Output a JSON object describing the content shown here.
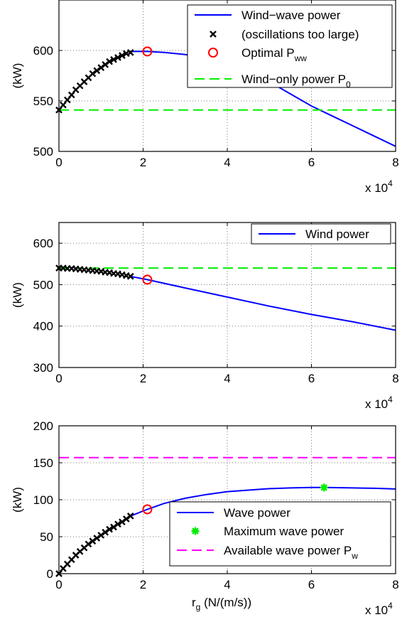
{
  "chart_data": [
    {
      "type": "line",
      "ylabel": "(kW)",
      "xlabel": "",
      "xlim": [
        0,
        80000
      ],
      "ylim": [
        500,
        650
      ],
      "x_ticks": [
        0,
        20000,
        40000,
        60000,
        80000
      ],
      "x_tick_labels": [
        "0",
        "2",
        "4",
        "6",
        "8"
      ],
      "y_ticks": [
        500,
        550,
        600
      ],
      "y_tick_labels": [
        "500",
        "550",
        "600"
      ],
      "x_multiplier": "x 10",
      "x_multiplier_exp": "4",
      "grid": true,
      "legend_position": "top-right",
      "series": [
        {
          "name": "Wind−wave power",
          "kind": "line",
          "color": "#0000ff",
          "x": [
            17000,
            21000,
            25000,
            30000,
            35000,
            40000,
            45000,
            50000,
            55000,
            60000,
            65000,
            70000,
            75000,
            80000
          ],
          "y": [
            599,
            599,
            598,
            596,
            592,
            586,
            578,
            569,
            557,
            545,
            535,
            525,
            515,
            505
          ]
        },
        {
          "name": "(oscillations too large)",
          "kind": "marker-x",
          "color": "#000000",
          "x": [
            0,
            1000,
            2000,
            3000,
            4000,
            5000,
            6000,
            7000,
            8000,
            9000,
            10000,
            11000,
            12000,
            13000,
            14000,
            15000,
            16000,
            17000
          ],
          "y": [
            541,
            546,
            551,
            556,
            561,
            565,
            569,
            573,
            577,
            580,
            583,
            586,
            589,
            591,
            593,
            595,
            597,
            598
          ]
        },
        {
          "name": "Optimal P",
          "name_sub": "ww",
          "kind": "marker-o",
          "color": "#ff0000",
          "x": [
            21000
          ],
          "y": [
            599
          ]
        },
        {
          "name": "Wind−only power P",
          "name_sub": "0",
          "kind": "dashed",
          "color": "#00ee00",
          "x": [
            0,
            80000
          ],
          "y": [
            541,
            541
          ]
        }
      ]
    },
    {
      "type": "line",
      "ylabel": "(kW)",
      "xlabel": "",
      "xlim": [
        0,
        80000
      ],
      "ylim": [
        300,
        650
      ],
      "x_ticks": [
        0,
        20000,
        40000,
        60000,
        80000
      ],
      "x_tick_labels": [
        "0",
        "2",
        "4",
        "6",
        "8"
      ],
      "y_ticks": [
        300,
        400,
        500,
        600
      ],
      "y_tick_labels": [
        "300",
        "400",
        "500",
        "600"
      ],
      "x_multiplier": "x 10",
      "x_multiplier_exp": "4",
      "grid": true,
      "legend_position": "top-right",
      "series": [
        {
          "name": "Wind power",
          "kind": "line",
          "color": "#0000ff",
          "x": [
            17000,
            21000,
            30000,
            40000,
            50000,
            60000,
            70000,
            80000
          ],
          "y": [
            520,
            512,
            492,
            470,
            448,
            428,
            410,
            390
          ]
        },
        {
          "name": "",
          "kind": "marker-x",
          "color": "#000000",
          "x": [
            0,
            1000,
            2000,
            3000,
            4000,
            5000,
            6000,
            7000,
            8000,
            9000,
            10000,
            11000,
            12000,
            13000,
            14000,
            15000,
            16000,
            17000
          ],
          "y": [
            540,
            540,
            539,
            539,
            538,
            537,
            536,
            535,
            534,
            533,
            532,
            530,
            529,
            527,
            526,
            524,
            522,
            520
          ]
        },
        {
          "name": "",
          "kind": "marker-o",
          "color": "#ff0000",
          "x": [
            21000
          ],
          "y": [
            512
          ]
        },
        {
          "name": "",
          "kind": "dashed",
          "color": "#00ee00",
          "x": [
            0,
            80000
          ],
          "y": [
            540,
            540
          ]
        }
      ]
    },
    {
      "type": "line",
      "ylabel": "(kW)",
      "xlabel": "r",
      "xlabel_sub": "g",
      "xlabel_rest": " (N/(m/s))",
      "xlim": [
        0,
        80000
      ],
      "ylim": [
        0,
        200
      ],
      "x_ticks": [
        0,
        20000,
        40000,
        60000,
        80000
      ],
      "x_tick_labels": [
        "0",
        "2",
        "4",
        "6",
        "8"
      ],
      "y_ticks": [
        0,
        50,
        100,
        150,
        200
      ],
      "y_tick_labels": [
        "0",
        "50",
        "100",
        "150",
        "200"
      ],
      "x_multiplier": "x 10",
      "x_multiplier_exp": "4",
      "grid": true,
      "legend_position": "bottom-right",
      "series": [
        {
          "name": "Wave power",
          "kind": "line",
          "color": "#0000ff",
          "x": [
            17000,
            21000,
            25000,
            30000,
            35000,
            40000,
            45000,
            50000,
            55000,
            60000,
            63000,
            66000,
            70000,
            75000,
            80000
          ],
          "y": [
            78,
            87,
            95,
            102,
            107,
            111,
            113,
            115,
            116,
            116.5,
            116.5,
            116.3,
            116,
            115.5,
            114.5
          ]
        },
        {
          "name": "",
          "kind": "marker-x",
          "color": "#000000",
          "x": [
            0,
            1000,
            2000,
            3000,
            4000,
            5000,
            6000,
            7000,
            8000,
            9000,
            10000,
            11000,
            12000,
            13000,
            14000,
            15000,
            16000,
            17000
          ],
          "y": [
            0,
            7,
            13,
            19,
            25,
            30,
            35,
            40,
            44,
            48,
            52,
            56,
            60,
            63,
            67,
            70,
            74,
            78
          ]
        },
        {
          "name": "",
          "kind": "marker-o",
          "color": "#ff0000",
          "x": [
            21000
          ],
          "y": [
            87
          ]
        },
        {
          "name": "Maximum wave power",
          "kind": "marker-star",
          "color": "#00ee00",
          "x": [
            63000
          ],
          "y": [
            116.5
          ]
        },
        {
          "name": "Available wave power P",
          "name_sub": "w",
          "kind": "dashed",
          "color": "#ff00ff",
          "x": [
            0,
            80000
          ],
          "y": [
            157,
            157
          ]
        }
      ]
    }
  ]
}
